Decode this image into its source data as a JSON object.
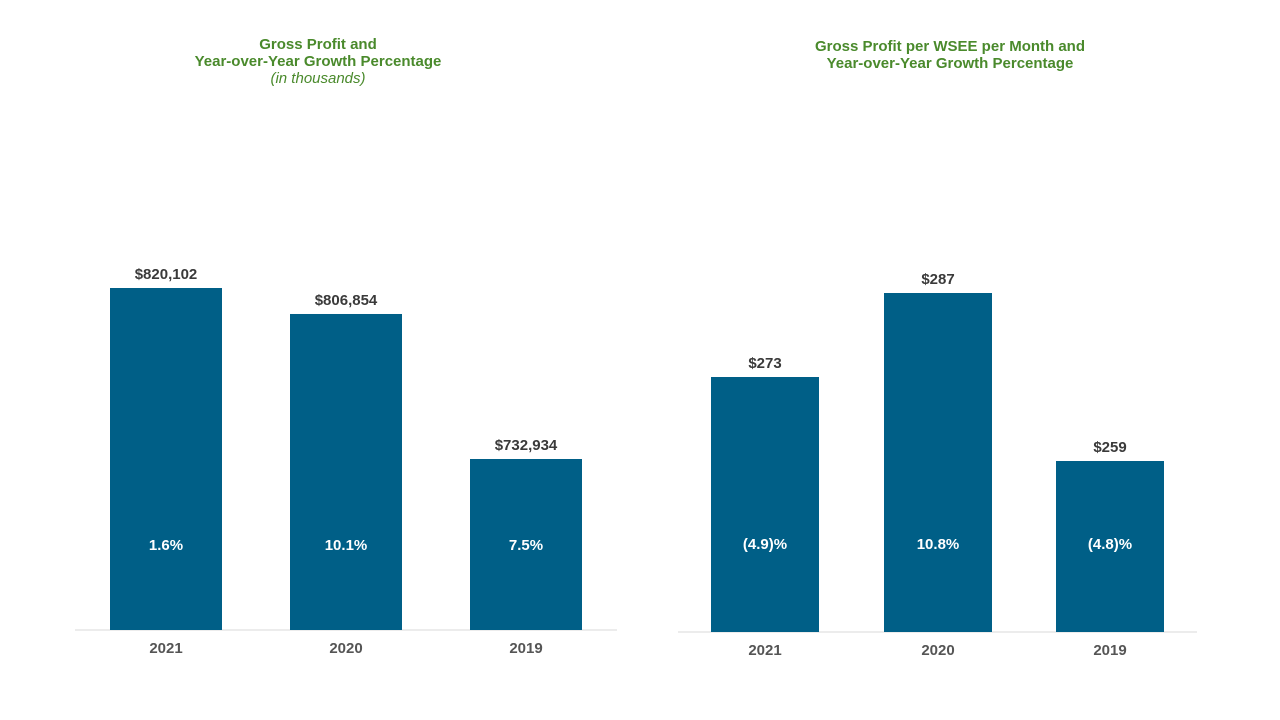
{
  "colors": {
    "bar": "#005f87",
    "title": "#4a8a2c",
    "value_text": "#3a3a3a",
    "growth_text": "#ffffff",
    "tick_text": "#555555",
    "axis": "#d9d9d9"
  },
  "chart_data": [
    {
      "type": "bar",
      "title": "Gross Profit and",
      "title_line2": "Year-over-Year  Growth Percentage",
      "subtitle": "(in thousands)",
      "categories": [
        "2021",
        "2020",
        "2019"
      ],
      "values": [
        820102,
        806854,
        732934
      ],
      "value_labels": [
        "$820,102",
        "$806,854",
        "$732,934"
      ],
      "growth_labels": [
        "1.6%",
        "10.1%",
        "7.5%"
      ],
      "xlabel": "",
      "ylabel": "",
      "grid": false
    },
    {
      "type": "bar",
      "title": "Gross Profit per WSEE per Month and",
      "title_line2": "Year-over-Year  Growth Percentage",
      "categories": [
        "2021",
        "2020",
        "2019"
      ],
      "values": [
        273,
        287,
        259
      ],
      "value_labels": [
        "$273",
        "$287",
        "$259"
      ],
      "growth_labels": [
        "(4.9)%",
        "10.8%",
        "(4.8)%"
      ],
      "xlabel": "",
      "ylabel": "",
      "grid": false
    }
  ]
}
